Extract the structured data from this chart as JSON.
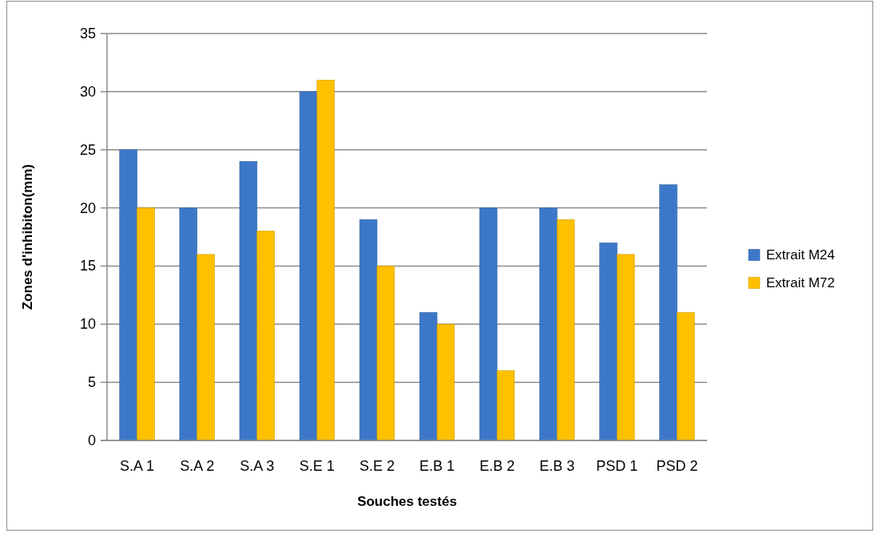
{
  "chart_data": {
    "type": "bar",
    "xlabel": "Souches testés",
    "ylabel": "Zones d'inhibiton(mm)",
    "categories": [
      "S.A 1",
      "S.A 2",
      "S.A 3",
      "S.E 1",
      "S.E 2",
      "E.B 1",
      "E.B 2",
      "E.B 3",
      "PSD 1",
      "PSD 2"
    ],
    "series": [
      {
        "name": "Extrait M24",
        "color": "#3d78c8",
        "values": [
          25,
          20,
          24,
          30,
          19,
          11,
          20,
          20,
          17,
          22
        ]
      },
      {
        "name": "Extrait M72",
        "color": "#ffc000",
        "values": [
          20,
          16,
          18,
          31,
          15,
          10,
          6,
          19,
          16,
          11
        ]
      }
    ],
    "ylim": [
      0,
      35
    ],
    "yticks": [
      0,
      5,
      10,
      15,
      20,
      25,
      30,
      35
    ],
    "grid": "y",
    "legend": "right"
  }
}
